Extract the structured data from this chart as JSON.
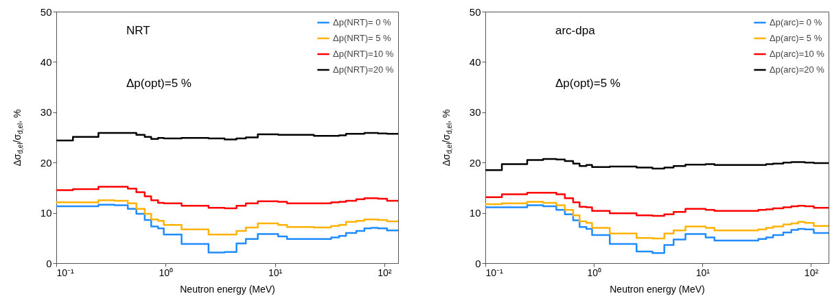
{
  "chart_data": [
    {
      "type": "step",
      "xlabel": "Neutron energy (MeV)",
      "ylabel": "Δσ$_{d,el}$/σ$_{d,el}$, %",
      "annotations": [
        "NRT",
        "Δp(opt)=5 %"
      ],
      "log": "x",
      "legend": "top right",
      "x": [
        0.1,
        0.142,
        0.243,
        0.341,
        0.451,
        0.54,
        0.644,
        0.738,
        0.853,
        0.962,
        1.4,
        2.47,
        3.46,
        4.45,
        5.42,
        6.97,
        10.7,
        12.9,
        22.7,
        32.7,
        38.6,
        44.7,
        55.5,
        65.8,
        76,
        87.7,
        106,
        134
      ],
      "xlim": [
        0.1,
        134
      ],
      "xticks": [
        {
          "value": 0.1,
          "label": "10⁻¹"
        },
        {
          "value": 1,
          "label": "10⁰"
        },
        {
          "value": 10,
          "label": "10¹"
        },
        {
          "value": 100,
          "label": "10²"
        }
      ],
      "ylim": [
        0,
        50
      ],
      "yticks": [
        0,
        10,
        20,
        30,
        40,
        50
      ],
      "series": [
        {
          "name": "Δp(NRT)= 0 %",
          "color": "#1e8cff",
          "values": [
            11.3,
            11.3,
            11.6,
            11.5,
            10.8,
            9.8,
            8.6,
            7.3,
            6.9,
            5.7,
            3.8,
            2.1,
            2.2,
            3.9,
            4.8,
            5.8,
            5.3,
            4.8,
            4.8,
            5.1,
            5.4,
            6.0,
            6.4,
            6.9,
            7.0,
            6.9,
            6.5,
            6.5
          ]
        },
        {
          "name": "Δp(NRT)= 5 %",
          "color": "#ffb300",
          "values": [
            12.1,
            12.1,
            12.5,
            12.4,
            11.9,
            10.8,
            9.8,
            8.7,
            8.4,
            7.6,
            6.7,
            5.7,
            5.7,
            6.4,
            7.1,
            7.9,
            7.6,
            7.2,
            7.1,
            7.4,
            7.6,
            8.2,
            8.4,
            8.7,
            8.7,
            8.6,
            8.3,
            8.3
          ]
        },
        {
          "name": "Δp(NRT)=10 %",
          "color": "#ff0000",
          "values": [
            14.5,
            14.7,
            15.2,
            15.2,
            14.8,
            14.1,
            13.3,
            12.5,
            12.0,
            11.9,
            11.4,
            11.0,
            10.9,
            11.4,
            11.9,
            12.3,
            12.2,
            11.9,
            11.9,
            12.1,
            12.2,
            12.4,
            12.7,
            12.9,
            12.9,
            12.8,
            12.4,
            12.4
          ]
        },
        {
          "name": "Δp(NRT)=20 %",
          "color": "#000000",
          "values": [
            24.4,
            25.1,
            25.9,
            25.9,
            25.9,
            25.5,
            25.1,
            24.7,
            24.9,
            24.8,
            24.9,
            24.8,
            24.6,
            24.8,
            25.0,
            25.6,
            25.5,
            25.5,
            25.3,
            25.3,
            25.4,
            25.7,
            25.7,
            25.9,
            25.9,
            25.8,
            25.7,
            25.7
          ]
        }
      ]
    },
    {
      "type": "step",
      "xlabel": "Neutron energy (MeV)",
      "ylabel": "Δσ$_{d,el}$/σ$_{d,el}$, %",
      "annotations": [
        "arc-dpa",
        "Δp(opt)=5 %"
      ],
      "log": "x",
      "legend": "top right",
      "x": [
        0.1,
        0.142,
        0.243,
        0.341,
        0.451,
        0.54,
        0.644,
        0.738,
        0.853,
        0.962,
        1.4,
        2.47,
        3.46,
        4.45,
        5.42,
        6.97,
        10.7,
        12.9,
        22.7,
        32.7,
        38.6,
        44.7,
        55.5,
        65.8,
        76,
        87.7,
        106,
        145
      ],
      "xlim": [
        0.1,
        145
      ],
      "xticks": [
        {
          "value": 0.1,
          "label": "10⁻¹"
        },
        {
          "value": 1,
          "label": "10⁰"
        },
        {
          "value": 10,
          "label": "10¹"
        },
        {
          "value": 100,
          "label": "10²"
        }
      ],
      "ylim": [
        0,
        50
      ],
      "yticks": [
        0,
        10,
        20,
        30,
        40,
        50
      ],
      "series": [
        {
          "name": "Δp(arc)= 0 %",
          "color": "#1e8cff",
          "values": [
            11.1,
            11.1,
            11.5,
            11.3,
            10.6,
            9.7,
            8.5,
            7.2,
            6.8,
            5.6,
            3.8,
            2.3,
            2.0,
            3.6,
            4.7,
            5.8,
            5.1,
            4.5,
            4.5,
            4.8,
            5.1,
            5.6,
            6.1,
            6.6,
            6.8,
            6.7,
            6.0,
            6.0
          ]
        },
        {
          "name": "Δp(arc)= 5 %",
          "color": "#ffb300",
          "values": [
            11.7,
            11.9,
            12.2,
            12.0,
            11.5,
            10.6,
            9.5,
            8.3,
            8.0,
            7.0,
            5.9,
            5.0,
            4.9,
            5.9,
            6.5,
            7.3,
            7.0,
            6.5,
            6.5,
            6.7,
            7.0,
            7.3,
            7.7,
            7.9,
            8.2,
            8.0,
            7.4,
            7.4
          ]
        },
        {
          "name": "Δp(arc)=10 %",
          "color": "#ff0000",
          "values": [
            13.1,
            13.7,
            14.0,
            14.0,
            13.7,
            12.9,
            12.1,
            11.2,
            11.1,
            10.4,
            9.9,
            9.5,
            9.4,
            9.7,
            10.2,
            10.8,
            10.6,
            10.4,
            10.4,
            10.6,
            10.7,
            10.9,
            11.1,
            11.3,
            11.4,
            11.3,
            11.0,
            11.0
          ]
        },
        {
          "name": "Δp(arc)=20 %",
          "color": "#000000",
          "values": [
            18.5,
            19.7,
            20.5,
            20.7,
            20.6,
            20.3,
            19.8,
            19.3,
            19.5,
            19.1,
            19.2,
            19.0,
            18.8,
            19.0,
            19.3,
            19.6,
            19.7,
            19.5,
            19.5,
            19.5,
            19.7,
            19.8,
            20.0,
            20.1,
            20.1,
            20.0,
            19.9,
            19.9
          ]
        }
      ]
    }
  ]
}
